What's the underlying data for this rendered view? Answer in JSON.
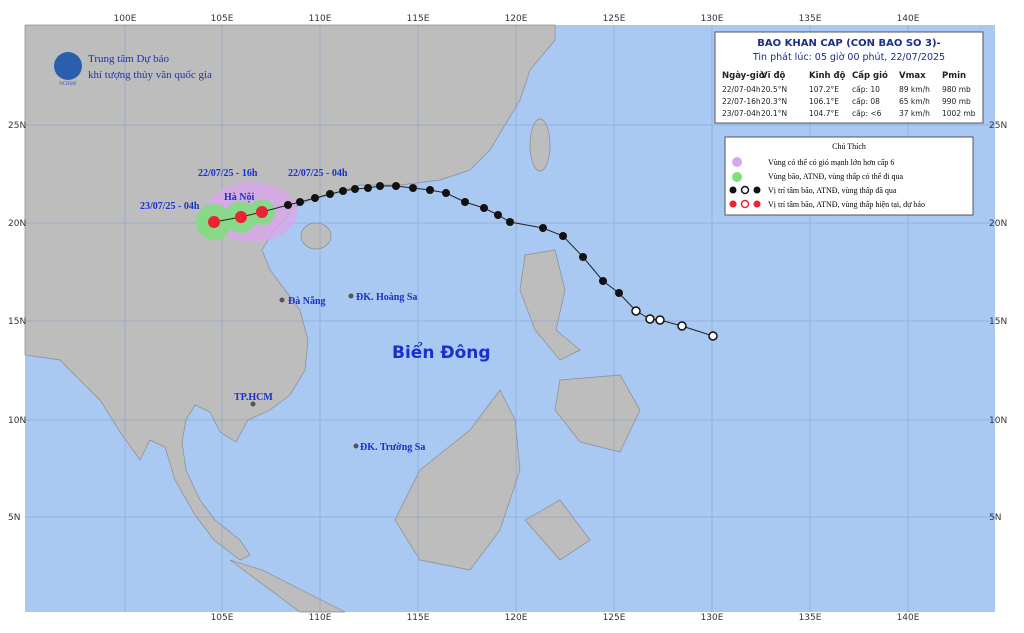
{
  "header": {
    "org_line1": "Trung tâm Dự báo",
    "org_line2": "khí tượng thủy văn quốc gia",
    "logo": "NCHMF"
  },
  "axes": {
    "top": [
      "100E",
      "105E",
      "110E",
      "115E",
      "120E",
      "125E",
      "130E",
      "135E",
      "140E"
    ],
    "bottom": [
      "105E",
      "110E",
      "115E",
      "120E",
      "125E",
      "130E",
      "135E",
      "140E"
    ],
    "left": [
      "25N",
      "20N",
      "15N",
      "10N",
      "5N"
    ],
    "right": [
      "25N",
      "20N",
      "15N",
      "10N",
      "5N"
    ]
  },
  "bulletin": {
    "title": "BAO KHAN CAP (CON BAO SO 3)-",
    "issued": "Tin phát lúc: 05 giờ 00 phút, 22/07/2025",
    "columns": [
      "Ngày-giờ",
      "Vĩ độ",
      "Kinh độ",
      "Cấp gió",
      "Vmax",
      "Pmin"
    ],
    "rows": [
      [
        "22/07-04h",
        "20.5°N",
        "107.2°E",
        "cấp: 10",
        "89 km/h",
        "980 mb"
      ],
      [
        "22/07-16h",
        "20.3°N",
        "106.1°E",
        "cấp: 08",
        "65 km/h",
        "990 mb"
      ],
      [
        "23/07-04h",
        "20.1°N",
        "104.7°E",
        "cấp: <6",
        "37 km/h",
        "1002 mb"
      ]
    ]
  },
  "legend": {
    "title": "Chú Thích",
    "items": [
      "Vùng có thể có gió mạnh lớn hơn cấp 6",
      "Vùng bão, ATNĐ, vùng thấp có thể đi qua",
      "Vị trí tâm bão, ATNĐ, vùng thấp đã qua",
      "Vị trí tâm bão, ATNĐ, vùng thấp hiện tại, dự báo"
    ]
  },
  "places": [
    "22/07/25 - 16h",
    "22/07/25 - 04h",
    "23/07/25 - 04h",
    "Hà Nội",
    "Đà Nẵng",
    "ĐK. Hoàng Sa",
    "Biển Đông",
    "TP.HCM",
    "ĐK. Trường Sa"
  ]
}
